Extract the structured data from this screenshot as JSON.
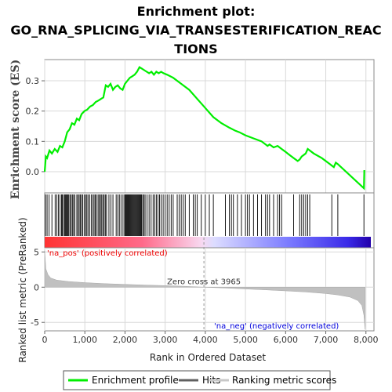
{
  "chart_data": {
    "type": "line",
    "title_lines": [
      "Enrichment plot:",
      "GO_RNA_SPLICING_VIA_TRANSESTERIFICATION_REAC",
      "TIONS"
    ],
    "top_panel": {
      "ylabel": "Enrichment score (ES)",
      "ylim": [
        -0.07,
        0.37
      ],
      "yticks": [
        0.0,
        0.1,
        0.2,
        0.3
      ],
      "ytick_labels": [
        "0.0",
        "0.1",
        "0.2",
        "0.3"
      ],
      "series_name": "Enrichment profile",
      "color": "#00ee00",
      "x": [
        0,
        30,
        60,
        120,
        180,
        250,
        320,
        380,
        440,
        500,
        560,
        620,
        680,
        740,
        800,
        860,
        920,
        990,
        1060,
        1130,
        1200,
        1270,
        1340,
        1400,
        1460,
        1520,
        1580,
        1640,
        1700,
        1760,
        1820,
        1880,
        1940,
        2000,
        2060,
        2120,
        2180,
        2240,
        2300,
        2360,
        2420,
        2480,
        2540,
        2600,
        2660,
        2720,
        2780,
        2840,
        2900,
        2960,
        3050,
        3200,
        3400,
        3600,
        3800,
        4000,
        4200,
        4400,
        4600,
        4750,
        4850,
        5000,
        5200,
        5400,
        5550,
        5600,
        5700,
        5800,
        5900,
        6000,
        6100,
        6200,
        6300,
        6350,
        6400,
        6450,
        6500,
        6550,
        6700,
        6900,
        7100,
        7150,
        7200,
        7250,
        7300,
        7950,
        7960
      ],
      "y": [
        0.0,
        0.05,
        0.045,
        0.07,
        0.06,
        0.075,
        0.065,
        0.085,
        0.08,
        0.1,
        0.13,
        0.14,
        0.16,
        0.155,
        0.175,
        0.17,
        0.19,
        0.2,
        0.205,
        0.215,
        0.22,
        0.23,
        0.235,
        0.24,
        0.245,
        0.285,
        0.28,
        0.29,
        0.27,
        0.28,
        0.285,
        0.275,
        0.27,
        0.29,
        0.3,
        0.31,
        0.315,
        0.32,
        0.33,
        0.345,
        0.34,
        0.335,
        0.33,
        0.325,
        0.33,
        0.32,
        0.33,
        0.325,
        0.33,
        0.325,
        0.32,
        0.31,
        0.29,
        0.27,
        0.24,
        0.21,
        0.18,
        0.16,
        0.145,
        0.135,
        0.13,
        0.12,
        0.11,
        0.1,
        0.085,
        0.09,
        0.08,
        0.085,
        0.075,
        0.065,
        0.055,
        0.045,
        0.035,
        0.04,
        0.05,
        0.055,
        0.06,
        0.075,
        0.06,
        0.045,
        0.025,
        0.02,
        0.015,
        0.03,
        0.025,
        -0.055,
        0.005
      ]
    },
    "hits_panel": {
      "series_name": "Hits",
      "hit_ranks": [
        20,
        60,
        110,
        180,
        260,
        300,
        340,
        380,
        420,
        440,
        470,
        500,
        520,
        540,
        560,
        580,
        600,
        630,
        660,
        690,
        720,
        750,
        800,
        830,
        860,
        890,
        920,
        950,
        990,
        1020,
        1050,
        1080,
        1120,
        1160,
        1200,
        1230,
        1260,
        1290,
        1330,
        1360,
        1390,
        1420,
        1450,
        1480,
        1510,
        1540,
        1600,
        1650,
        1700,
        1780,
        1820,
        1860,
        1900,
        1950,
        1990,
        2010,
        2030,
        2050,
        2070,
        2090,
        2110,
        2130,
        2150,
        2170,
        2190,
        2210,
        2230,
        2250,
        2270,
        2290,
        2310,
        2330,
        2350,
        2370,
        2390,
        2410,
        2440,
        2470,
        2500,
        2550,
        2600,
        2650,
        2700,
        2740,
        2780,
        2820,
        2860,
        2900,
        2950,
        3000,
        3050,
        3100,
        3150,
        3200,
        3300,
        3350,
        3400,
        3450,
        3500,
        3600,
        3700,
        3750,
        3800,
        3900,
        4000,
        4100,
        4200,
        4500,
        4600,
        4650,
        4700,
        4800,
        4900,
        5000,
        5050,
        5100,
        5200,
        5300,
        5400,
        5500,
        5550,
        5600,
        5700,
        5800,
        5850,
        5900,
        6200,
        6350,
        6400,
        6450,
        6500,
        6550,
        6600,
        7150,
        7300,
        7950
      ]
    },
    "ranked_panel": {
      "ylabel": "Ranked list metric (PreRanked)",
      "ylim": [
        -6.2,
        5.6
      ],
      "yticks": [
        -5,
        0,
        5
      ],
      "ytick_labels": [
        "-5",
        "0",
        "5"
      ],
      "series_name": "Ranking metric scores",
      "color": "#c0c0c0",
      "x": [
        0,
        30,
        80,
        150,
        300,
        600,
        1000,
        1500,
        2000,
        2500,
        3000,
        3500,
        3965,
        4500,
        5000,
        5500,
        6000,
        6500,
        7000,
        7300,
        7600,
        7800,
        7900,
        7950,
        7980
      ],
      "y": [
        5.2,
        2.6,
        1.8,
        1.3,
        1.0,
        0.8,
        0.65,
        0.5,
        0.4,
        0.3,
        0.22,
        0.12,
        0.0,
        -0.12,
        -0.25,
        -0.38,
        -0.52,
        -0.68,
        -0.9,
        -1.1,
        -1.4,
        -1.9,
        -2.6,
        -4.0,
        -6.0
      ],
      "zero_cross_label": "Zero cross at 3965",
      "zero_cross_rank": 3965,
      "pos_label": "'na_pos' (positively correlated)",
      "neg_label": "'na_neg' (negatively correlated)"
    },
    "xlabel": "Rank in Ordered Dataset",
    "xlim": [
      0,
      8200
    ],
    "xticks": [
      0,
      1000,
      2000,
      3000,
      4000,
      5000,
      6000,
      7000,
      8000
    ],
    "xtick_labels": [
      "0",
      "1,000",
      "2,000",
      "3,000",
      "4,000",
      "5,000",
      "6,000",
      "7,000",
      "8,000"
    ],
    "legend": {
      "placement": "bottom",
      "entries": [
        {
          "label": "Enrichment profile",
          "color": "#00ee00"
        },
        {
          "label": "Hits",
          "color": "#606060"
        },
        {
          "label": "Ranking metric scores",
          "color": "#c8c8c8"
        }
      ]
    },
    "colors": {
      "pos": "#ff0000",
      "neg": "#0000ff",
      "zero_line": "#999999"
    }
  }
}
